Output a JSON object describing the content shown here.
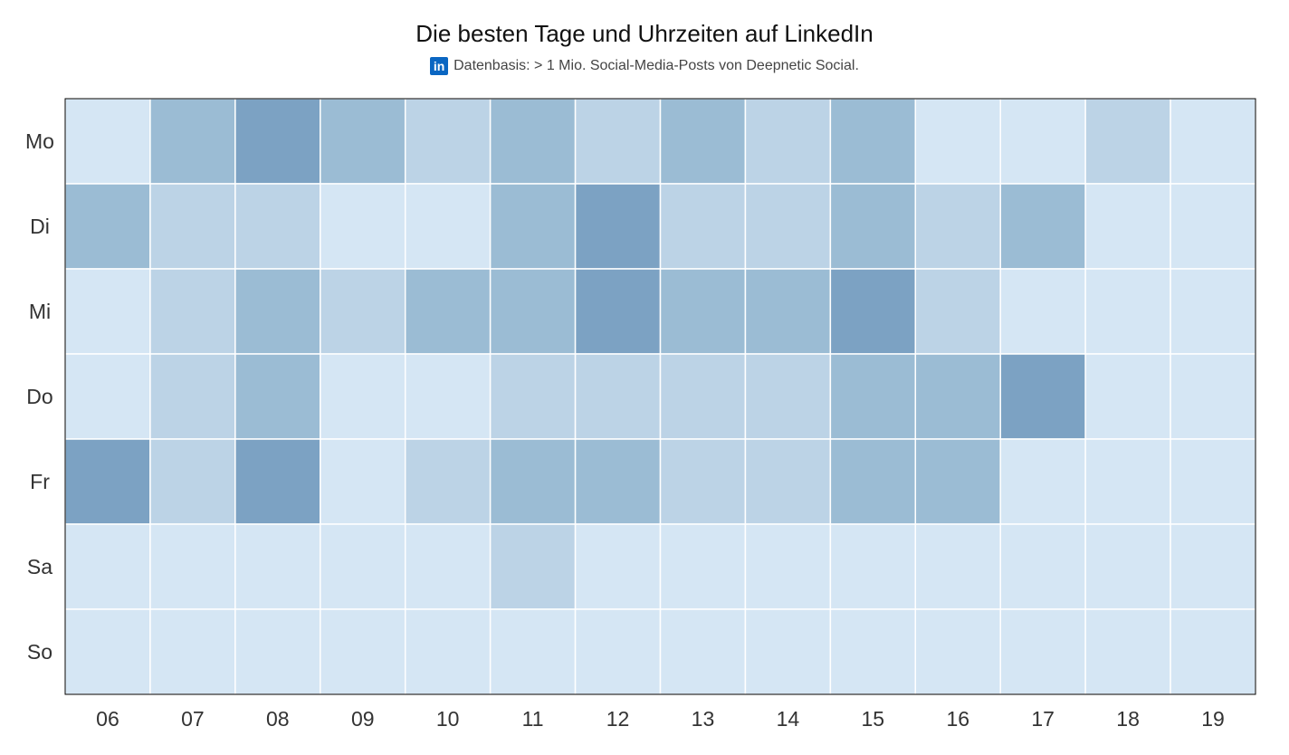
{
  "title": "Die besten Tage und Uhrzeiten auf LinkedIn",
  "subtitle": "Datenbasis: > 1 Mio. Social-Media-Posts von Deepnetic Social.",
  "subtitle_icon": "linkedin-icon",
  "colors": {
    "level_0": "#d5e6f4",
    "level_1": "#bcd3e6",
    "level_2": "#9bbcd4",
    "level_3": "#7ca2c3",
    "grid": "#ffffff",
    "frame": "#000000",
    "linkedin": "#0a66c2"
  },
  "chart_data": {
    "type": "heatmap",
    "title": "Die besten Tage und Uhrzeiten auf LinkedIn",
    "x": [
      "06",
      "07",
      "08",
      "09",
      "10",
      "11",
      "12",
      "13",
      "14",
      "15",
      "16",
      "17",
      "18",
      "19"
    ],
    "y": [
      "Mo",
      "Di",
      "Mi",
      "Do",
      "Fr",
      "Sa",
      "So"
    ],
    "value_scale": "relative intensity level 0-3 (darker = better)",
    "values": [
      [
        0,
        2,
        3,
        2,
        1,
        2,
        1,
        2,
        1,
        2,
        0,
        0,
        1,
        0
      ],
      [
        2,
        1,
        1,
        0,
        0,
        2,
        3,
        1,
        1,
        2,
        1,
        2,
        0,
        0
      ],
      [
        0,
        1,
        2,
        1,
        2,
        2,
        3,
        2,
        2,
        3,
        1,
        0,
        0,
        0
      ],
      [
        0,
        1,
        2,
        0,
        0,
        1,
        1,
        1,
        1,
        2,
        2,
        3,
        0,
        0
      ],
      [
        3,
        1,
        3,
        0,
        1,
        2,
        2,
        1,
        1,
        2,
        2,
        0,
        0,
        0
      ],
      [
        0,
        0,
        0,
        0,
        0,
        1,
        0,
        0,
        0,
        0,
        0,
        0,
        0,
        0
      ],
      [
        0,
        0,
        0,
        0,
        0,
        0,
        0,
        0,
        0,
        0,
        0,
        0,
        0,
        0
      ]
    ],
    "legend": "none"
  }
}
